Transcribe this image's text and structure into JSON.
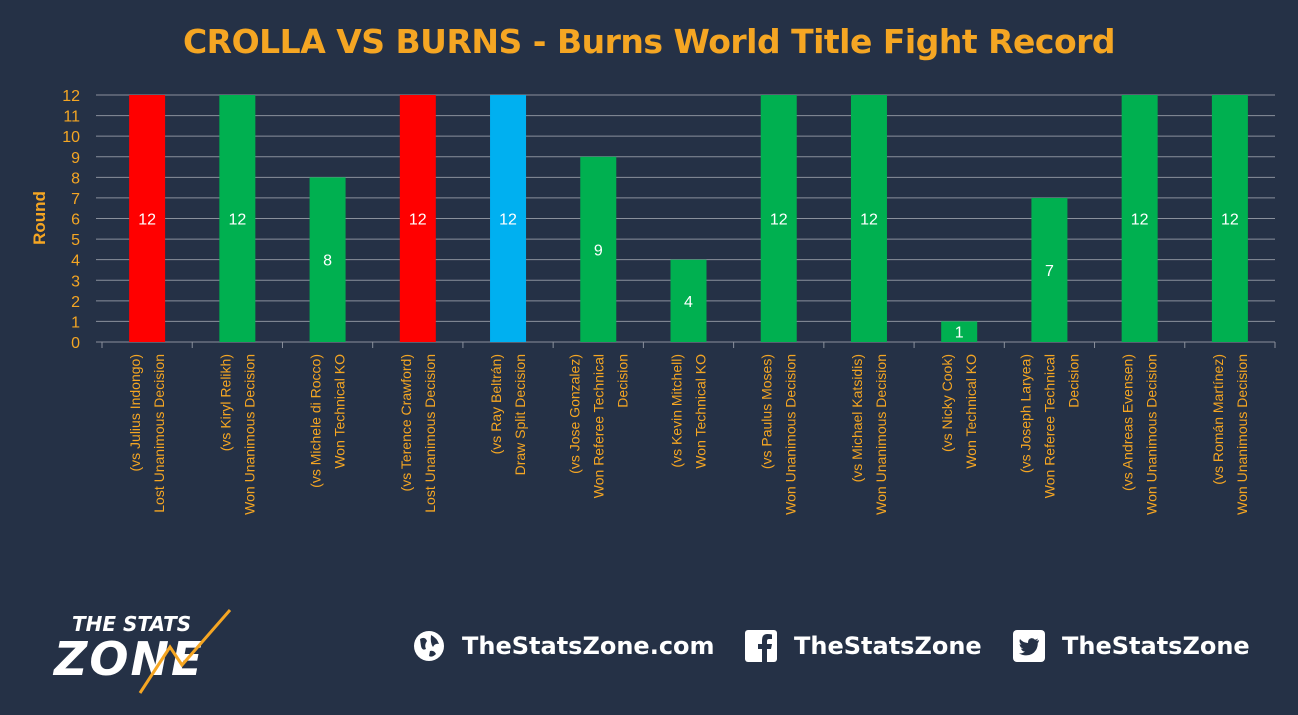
{
  "chart_data": {
    "type": "bar",
    "title": "CROLLA VS BURNS - Burns World Title Fight Record",
    "ylabel": "Round",
    "xlabel": "",
    "ylim": [
      0,
      12
    ],
    "yticks": [
      0,
      1,
      2,
      3,
      4,
      5,
      6,
      7,
      8,
      9,
      10,
      11,
      12
    ],
    "grid": true,
    "categories": [
      [
        "(vs Julius Indongo)",
        "Lost Unanimous Decision"
      ],
      [
        "(vs Kiryl Relikh)",
        "Won Unanimous Decision"
      ],
      [
        "(vs Michele di Rocco)",
        "Won Technical KO"
      ],
      [
        "(vs Terence Crawford)",
        "Lost Unanimous Decision"
      ],
      [
        "(vs Ray Beltrán)",
        "Draw Split Decision"
      ],
      [
        "(vs Jose Gonzalez)",
        "Won Referee Technical",
        "Decision"
      ],
      [
        "(vs Kevin Mitchell)",
        "Won Technical KO"
      ],
      [
        "(vs Paulus Moses)",
        "Won Unanimous Decision"
      ],
      [
        "(vs Michael Katsidis)",
        "Won Unanimous Decision"
      ],
      [
        "(vs Nicky Cook)",
        "Won Technical KO"
      ],
      [
        "(vs Joseph Laryea)",
        "Won Referee Technical",
        "Decision"
      ],
      [
        "(vs Andreas Evensen)",
        "Won Unanimous Decision"
      ],
      [
        "(vs Román Martínez)",
        "Won Unanimous Decision"
      ]
    ],
    "values": [
      12,
      12,
      8,
      12,
      12,
      9,
      4,
      12,
      12,
      1,
      7,
      12,
      12
    ],
    "colors": [
      "#ff0000",
      "#00b050",
      "#00b050",
      "#ff0000",
      "#00b0f0",
      "#00b050",
      "#00b050",
      "#00b050",
      "#00b050",
      "#00b050",
      "#00b050",
      "#00b050",
      "#00b050"
    ]
  },
  "footer": {
    "logo_line1": "THE STATS",
    "logo_line2": "ZONE",
    "website": "TheStatsZone.com",
    "facebook": "TheStatsZone",
    "twitter": "TheStatsZone",
    "icons": [
      "globe-icon",
      "facebook-icon",
      "twitter-icon"
    ]
  }
}
